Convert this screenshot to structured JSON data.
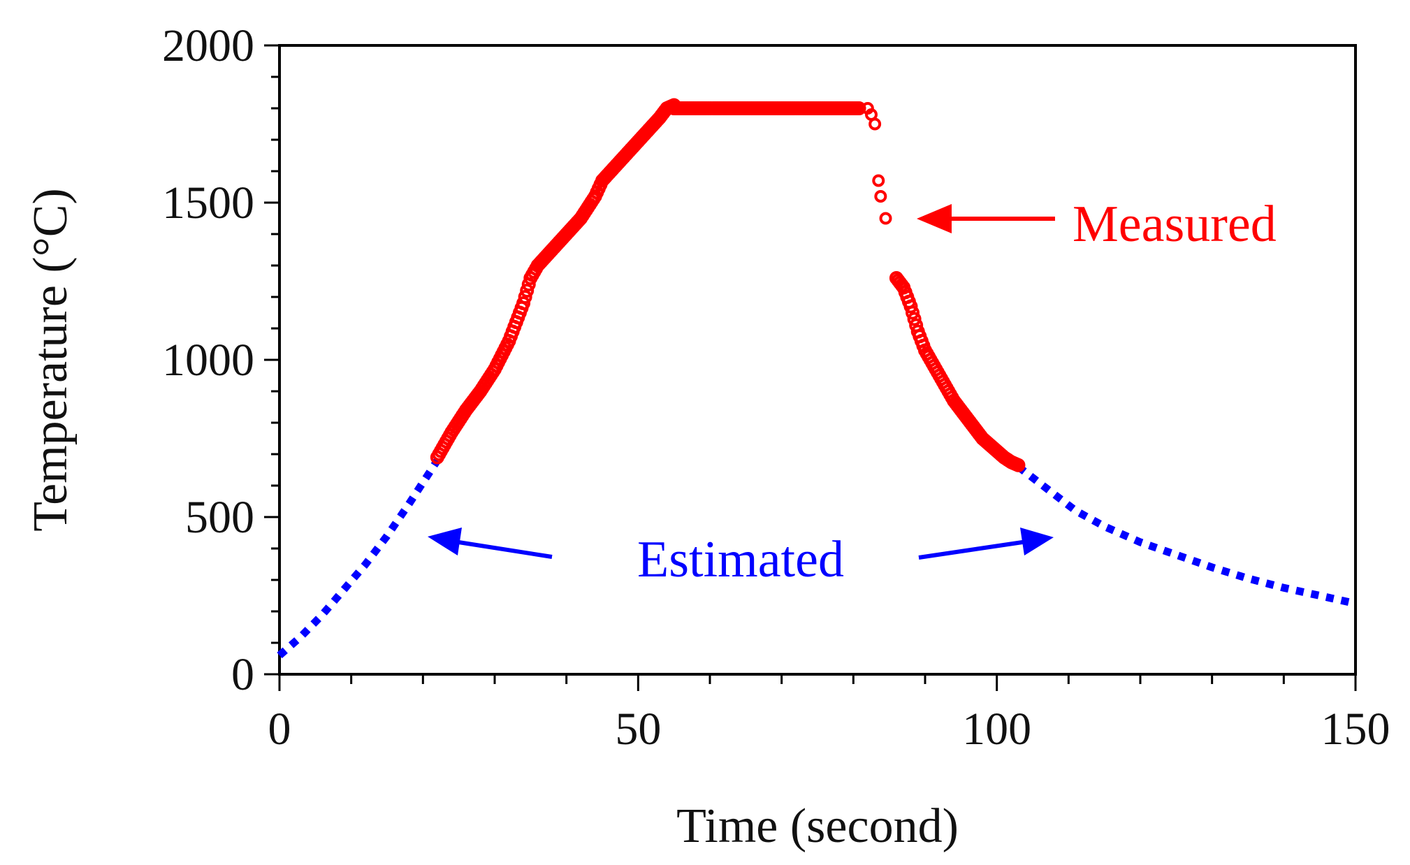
{
  "chart_data": {
    "type": "scatter",
    "title": "",
    "xlabel": "Time (second)",
    "ylabel": "Temperature (°C)",
    "xlim": [
      0,
      150
    ],
    "ylim": [
      0,
      2000
    ],
    "x_ticks": [
      "0",
      "50",
      "100",
      "150"
    ],
    "y_ticks": [
      "0",
      "500",
      "1000",
      "1500",
      "2000"
    ],
    "series": [
      {
        "name": "Measured",
        "marker": "open-circle",
        "color": "#ff0000",
        "heating": [
          [
            22,
            690
          ],
          [
            24,
            770
          ],
          [
            26,
            840
          ],
          [
            28,
            900
          ],
          [
            30,
            970
          ],
          [
            32,
            1060
          ],
          [
            34,
            1180
          ],
          [
            35,
            1260
          ],
          [
            36,
            1300
          ],
          [
            38,
            1350
          ],
          [
            40,
            1400
          ],
          [
            42,
            1450
          ],
          [
            44,
            1520
          ],
          [
            45,
            1570
          ],
          [
            47,
            1620
          ],
          [
            49,
            1670
          ],
          [
            51,
            1720
          ],
          [
            53,
            1770
          ],
          [
            54,
            1800
          ],
          [
            55,
            1810
          ]
        ],
        "plateau": {
          "start": 55,
          "end": 81,
          "value": 1800
        },
        "isolated": [
          [
            82,
            1800
          ],
          [
            82.5,
            1780
          ],
          [
            83,
            1750
          ],
          [
            83.5,
            1570
          ],
          [
            83.8,
            1520
          ],
          [
            84.5,
            1450
          ]
        ],
        "cooling": [
          [
            86,
            1260
          ],
          [
            87,
            1230
          ],
          [
            88,
            1170
          ],
          [
            89,
            1090
          ],
          [
            90,
            1030
          ],
          [
            91,
            990
          ],
          [
            92,
            950
          ],
          [
            93,
            910
          ],
          [
            94,
            870
          ],
          [
            95,
            840
          ],
          [
            96,
            810
          ],
          [
            97,
            780
          ],
          [
            98,
            750
          ],
          [
            99,
            730
          ],
          [
            100,
            710
          ],
          [
            101,
            690
          ],
          [
            102,
            675
          ],
          [
            103,
            665
          ]
        ]
      },
      {
        "name": "Estimated",
        "style": "dotted-line",
        "color": "#0000ff",
        "heating": [
          [
            0,
            60
          ],
          [
            3,
            120
          ],
          [
            6,
            190
          ],
          [
            9,
            270
          ],
          [
            12,
            350
          ],
          [
            15,
            440
          ],
          [
            18,
            540
          ],
          [
            22,
            680
          ]
        ],
        "cooling": [
          [
            103,
            660
          ],
          [
            107,
            590
          ],
          [
            111,
            520
          ],
          [
            115,
            470
          ],
          [
            120,
            420
          ],
          [
            125,
            380
          ],
          [
            130,
            340
          ],
          [
            135,
            305
          ],
          [
            140,
            275
          ],
          [
            145,
            250
          ],
          [
            150,
            225
          ]
        ]
      }
    ],
    "annotations": [
      {
        "text": "Measured",
        "color": "#ff0000"
      },
      {
        "text": "Estimated",
        "color": "#0000ff"
      }
    ]
  }
}
